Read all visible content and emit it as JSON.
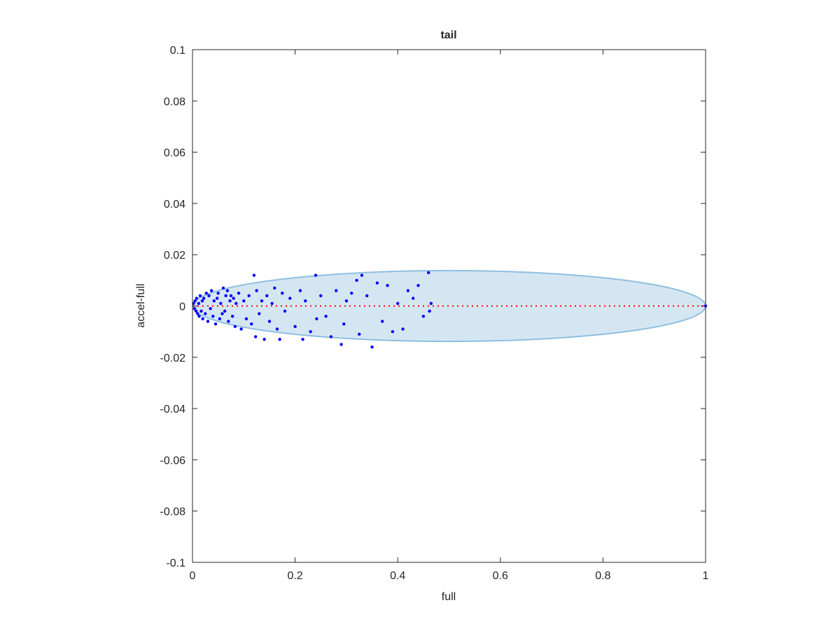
{
  "chart_data": {
    "type": "scatter",
    "title": "tail",
    "x_label": "full",
    "y_label": "accel-full",
    "xlim": [
      0,
      1
    ],
    "ylim": [
      -0.1,
      0.1
    ],
    "xticks": [
      0,
      0.2,
      0.4,
      0.6,
      0.8,
      1
    ],
    "yticks": [
      -0.1,
      -0.08,
      -0.06,
      -0.04,
      -0.02,
      0,
      0.02,
      0.04,
      0.06,
      0.08,
      0.1
    ],
    "grid": false,
    "series": [
      {
        "color": "#0000ff",
        "x": [
          0.002,
          0.004,
          0.005,
          0.007,
          0.008,
          0.01,
          0.012,
          0.013,
          0.015,
          0.017,
          0.019,
          0.02,
          0.022,
          0.025,
          0.027,
          0.03,
          0.032,
          0.035,
          0.037,
          0.04,
          0.042,
          0.045,
          0.048,
          0.05,
          0.053,
          0.055,
          0.058,
          0.06,
          0.063,
          0.065,
          0.068,
          0.07,
          0.073,
          0.075,
          0.078,
          0.08,
          0.083,
          0.085,
          0.09,
          0.095,
          0.1,
          0.105,
          0.11,
          0.115,
          0.12,
          0.123,
          0.125,
          0.13,
          0.135,
          0.14,
          0.145,
          0.15,
          0.155,
          0.16,
          0.165,
          0.17,
          0.175,
          0.18,
          0.19,
          0.2,
          0.21,
          0.215,
          0.22,
          0.23,
          0.24,
          0.242,
          0.25,
          0.26,
          0.27,
          0.28,
          0.29,
          0.295,
          0.3,
          0.31,
          0.32,
          0.325,
          0.33,
          0.34,
          0.35,
          0.36,
          0.37,
          0.38,
          0.39,
          0.4,
          0.41,
          0.42,
          0.43,
          0.44,
          0.45,
          0.46,
          0.462,
          0.465,
          1
        ],
        "values": [
          0.001,
          -0.001,
          0.002,
          -0.002,
          0.003,
          -0.003,
          0.001,
          -0.004,
          0.004,
          -0.002,
          0.002,
          -0.005,
          0.003,
          -0.003,
          0.005,
          -0.006,
          0.004,
          -0.001,
          0.006,
          -0.004,
          0.002,
          -0.007,
          0.003,
          0.005,
          -0.005,
          0.001,
          -0.003,
          0.007,
          -0.002,
          0.004,
          0.006,
          -0.006,
          0.002,
          0.004,
          -0.004,
          0.003,
          -0.008,
          0.001,
          0.005,
          -0.009,
          0.002,
          -0.005,
          0.004,
          -0.007,
          0.012,
          -0.012,
          0.006,
          -0.003,
          0.002,
          -0.013,
          0.004,
          -0.006,
          0.001,
          0.007,
          -0.009,
          -0.013,
          0.005,
          -0.002,
          0.003,
          -0.008,
          0.006,
          -0.013,
          0.002,
          -0.01,
          0.012,
          -0.005,
          0.004,
          -0.004,
          -0.012,
          0.006,
          -0.015,
          -0.007,
          0.002,
          0.005,
          0.01,
          -0.011,
          0.012,
          0.004,
          -0.016,
          0.009,
          -0.006,
          0.008,
          -0.01,
          0.001,
          -0.009,
          0.006,
          0.003,
          0.008,
          -0.004,
          0.013,
          -0.002,
          0.001,
          0
        ]
      }
    ],
    "ellipse": {
      "center": [
        0.5,
        0
      ],
      "radii": [
        0.5,
        0.0138
      ],
      "color": "#8fbfe0",
      "fill": "#d5e6f3"
    },
    "reference_line": {
      "x": [
        0,
        1
      ],
      "y": [
        0,
        0
      ],
      "color": "#ff0000"
    }
  }
}
